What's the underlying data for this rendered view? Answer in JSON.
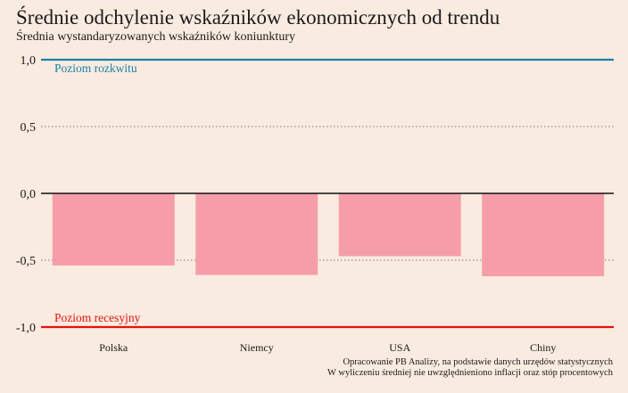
{
  "header": {
    "title": "Średnie odchylenie wskaźników ekonomicznych od trendu",
    "subtitle": "Średnia wystandaryzowanych wskaźników koniunktury"
  },
  "footer": {
    "source_line1": "Opracowanie PB Analizy, na podstawie danych urzędów statystycznych",
    "source_line2": "W wyliczeniu średniej nie uwzględnieniono inflacji oraz stóp procentowych"
  },
  "chart_data": {
    "type": "bar",
    "title": "Średnie odchylenie wskaźników ekonomicznych od trendu",
    "subtitle": "Średnia wystandaryzowanych wskaźników koniunktury",
    "categories": [
      "Polska",
      "Niemcy",
      "USA",
      "Chiny"
    ],
    "values": [
      -0.54,
      -0.61,
      -0.47,
      -0.62
    ],
    "ylim": [
      -1.0,
      1.0
    ],
    "yticks": [
      1.0,
      0.5,
      0.0,
      -0.5,
      -1.0
    ],
    "ytick_labels": [
      "1,0",
      "0,5",
      "0,0",
      "-0,5",
      "-1,0"
    ],
    "grid": "dotted",
    "reference_lines": [
      {
        "value": 1.0,
        "label": "Poziom rozkwitu",
        "color": "#1b7fa8"
      },
      {
        "value": -1.0,
        "label": "Poziom recesyjny",
        "color": "#e8100e"
      }
    ],
    "bar_color": "#f59ea9",
    "zero_line_color": "#111111"
  }
}
